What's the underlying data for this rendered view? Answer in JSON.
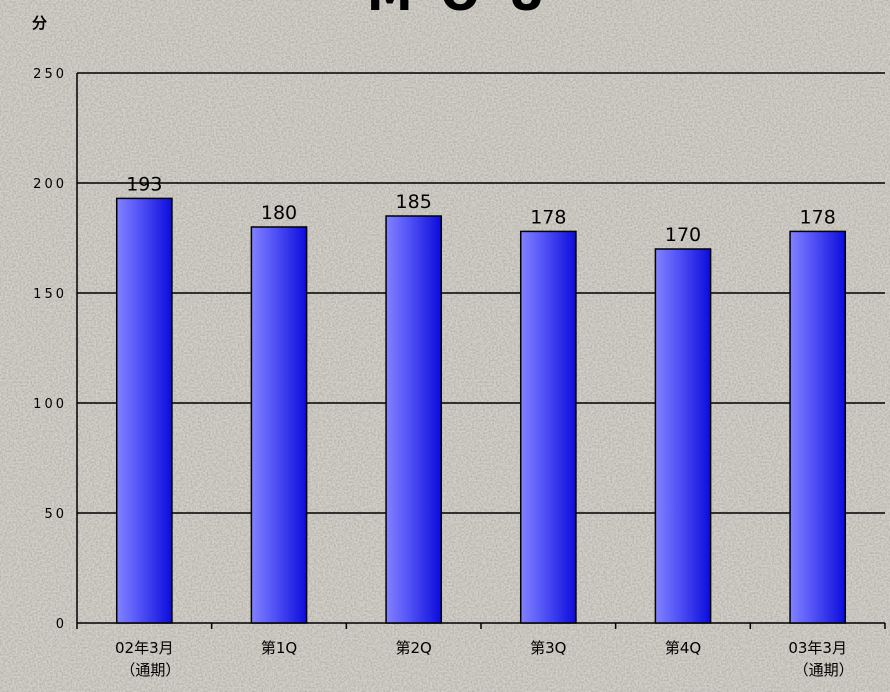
{
  "chart_data": {
    "type": "bar",
    "title": "MOU",
    "ylabel": "分",
    "xlabel": "",
    "categories": [
      "02年3月（通期）",
      "第1Q",
      "第2Q",
      "第3Q",
      "第4Q",
      "03年3月（通期）"
    ],
    "category_lines": [
      [
        "02年3月",
        "（通期）"
      ],
      [
        "第1Q"
      ],
      [
        "第2Q"
      ],
      [
        "第3Q"
      ],
      [
        "第4Q"
      ],
      [
        "03年3月",
        "（通期）"
      ]
    ],
    "values": [
      193,
      180,
      185,
      178,
      170,
      178
    ],
    "data_labels": [
      "193",
      "180",
      "185",
      "178",
      "170",
      "178"
    ],
    "ylim": [
      0,
      250
    ],
    "yticks": [
      0,
      50,
      100,
      150,
      200,
      250
    ],
    "ytick_labels": [
      "0",
      "50",
      "100",
      "150",
      "200",
      "250"
    ],
    "grid": true,
    "legend": "none",
    "colors": {
      "bar_dark": "#1010e0",
      "bar_light": "#7878ff",
      "background": "#d3d0c8"
    }
  }
}
